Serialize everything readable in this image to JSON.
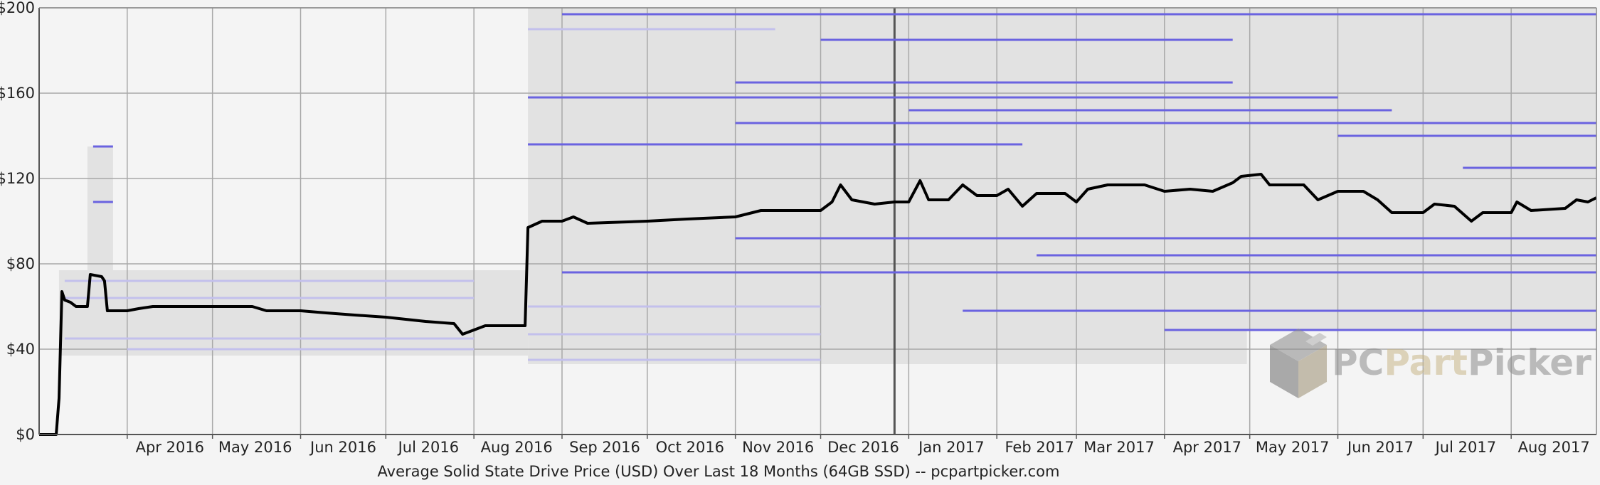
{
  "chart_data": {
    "type": "line",
    "title": "Average Solid State Drive Price (USD) Over Last 18 Months (64GB SSD) -- pcpartpicker.com",
    "xlabel": "",
    "ylabel": "",
    "x_range": [
      "2016-03-01",
      "2017-08-31"
    ],
    "ylim": [
      0,
      200
    ],
    "y_ticks": [
      0,
      40,
      80,
      120,
      160,
      200
    ],
    "y_tick_labels": [
      "$0",
      "$40",
      "$80",
      "$120",
      "$160",
      "$200"
    ],
    "x_ticks": [
      {
        "date": "2016-04-01",
        "label": "Apr 2016"
      },
      {
        "date": "2016-05-01",
        "label": "May 2016"
      },
      {
        "date": "2016-06-01",
        "label": "Jun 2016"
      },
      {
        "date": "2016-07-01",
        "label": "Jul 2016"
      },
      {
        "date": "2016-08-01",
        "label": "Aug 2016"
      },
      {
        "date": "2016-09-01",
        "label": "Sep 2016"
      },
      {
        "date": "2016-10-01",
        "label": "Oct 2016"
      },
      {
        "date": "2016-11-01",
        "label": "Nov 2016"
      },
      {
        "date": "2016-12-01",
        "label": "Dec 2016"
      },
      {
        "date": "2017-01-01",
        "label": "Jan 2017"
      },
      {
        "date": "2017-02-01",
        "label": "Feb 2017"
      },
      {
        "date": "2017-03-01",
        "label": "Mar 2017"
      },
      {
        "date": "2017-04-01",
        "label": "Apr 2017"
      },
      {
        "date": "2017-05-01",
        "label": "May 2017"
      },
      {
        "date": "2017-06-01",
        "label": "Jun 2017"
      },
      {
        "date": "2017-07-01",
        "label": "Jul 2017"
      },
      {
        "date": "2017-08-01",
        "label": "Aug 2017"
      }
    ],
    "grid": true,
    "series": [
      {
        "color": "#000000",
        "points": [
          [
            "2016-03-01",
            0
          ],
          [
            "2016-03-07",
            0
          ],
          [
            "2016-03-08",
            17
          ],
          [
            "2016-03-09",
            67
          ],
          [
            "2016-03-10",
            63
          ],
          [
            "2016-03-12",
            62
          ],
          [
            "2016-03-14",
            60
          ],
          [
            "2016-03-18",
            60
          ],
          [
            "2016-03-19",
            75
          ],
          [
            "2016-03-23",
            74
          ],
          [
            "2016-03-24",
            72
          ],
          [
            "2016-03-25",
            58
          ],
          [
            "2016-04-01",
            58
          ],
          [
            "2016-04-05",
            59
          ],
          [
            "2016-04-10",
            60
          ],
          [
            "2016-04-20",
            60
          ],
          [
            "2016-05-01",
            60
          ],
          [
            "2016-05-15",
            60
          ],
          [
            "2016-05-20",
            58
          ],
          [
            "2016-06-01",
            58
          ],
          [
            "2016-06-10",
            57
          ],
          [
            "2016-06-20",
            56
          ],
          [
            "2016-07-01",
            55
          ],
          [
            "2016-07-15",
            53
          ],
          [
            "2016-07-25",
            52
          ],
          [
            "2016-07-28",
            47
          ],
          [
            "2016-08-01",
            49
          ],
          [
            "2016-08-05",
            51
          ],
          [
            "2016-08-19",
            51
          ],
          [
            "2016-08-20",
            97
          ],
          [
            "2016-08-25",
            100
          ],
          [
            "2016-09-01",
            100
          ],
          [
            "2016-09-05",
            102
          ],
          [
            "2016-09-10",
            99
          ],
          [
            "2016-10-01",
            100
          ],
          [
            "2016-10-15",
            101
          ],
          [
            "2016-11-01",
            102
          ],
          [
            "2016-11-10",
            105
          ],
          [
            "2016-11-20",
            105
          ],
          [
            "2016-12-01",
            105
          ],
          [
            "2016-12-05",
            109
          ],
          [
            "2016-12-08",
            117
          ],
          [
            "2016-12-12",
            110
          ],
          [
            "2016-12-20",
            108
          ],
          [
            "2016-12-27",
            109
          ],
          [
            "2017-01-01",
            109
          ],
          [
            "2017-01-05",
            119
          ],
          [
            "2017-01-08",
            110
          ],
          [
            "2017-01-15",
            110
          ],
          [
            "2017-01-20",
            117
          ],
          [
            "2017-01-25",
            112
          ],
          [
            "2017-02-01",
            112
          ],
          [
            "2017-02-05",
            115
          ],
          [
            "2017-02-10",
            107
          ],
          [
            "2017-02-15",
            113
          ],
          [
            "2017-02-25",
            113
          ],
          [
            "2017-03-01",
            109
          ],
          [
            "2017-03-05",
            115
          ],
          [
            "2017-03-12",
            117
          ],
          [
            "2017-03-25",
            117
          ],
          [
            "2017-04-01",
            114
          ],
          [
            "2017-04-10",
            115
          ],
          [
            "2017-04-18",
            114
          ],
          [
            "2017-04-25",
            118
          ],
          [
            "2017-04-28",
            121
          ],
          [
            "2017-05-05",
            122
          ],
          [
            "2017-05-08",
            117
          ],
          [
            "2017-05-20",
            117
          ],
          [
            "2017-05-25",
            110
          ],
          [
            "2017-06-01",
            114
          ],
          [
            "2017-06-10",
            114
          ],
          [
            "2017-06-15",
            110
          ],
          [
            "2017-06-20",
            104
          ],
          [
            "2017-07-01",
            104
          ],
          [
            "2017-07-05",
            108
          ],
          [
            "2017-07-12",
            107
          ],
          [
            "2017-07-18",
            100
          ],
          [
            "2017-07-22",
            104
          ],
          [
            "2017-08-01",
            104
          ],
          [
            "2017-08-03",
            109
          ],
          [
            "2017-08-08",
            105
          ],
          [
            "2017-08-20",
            106
          ],
          [
            "2017-08-24",
            110
          ],
          [
            "2017-08-28",
            109
          ],
          [
            "2017-08-31",
            111
          ]
        ]
      }
    ],
    "individual_listings": [
      {
        "color": "#6a63e0",
        "segments": [
          [
            "2016-09-01",
            "2017-08-31",
            197
          ],
          [
            "2016-12-01",
            "2017-04-25",
            185
          ],
          [
            "2016-11-01",
            "2017-04-25",
            165
          ],
          [
            "2016-08-20",
            "2017-06-01",
            158
          ],
          [
            "2017-01-01",
            "2017-06-20",
            152
          ],
          [
            "2016-11-01",
            "2017-08-31",
            146
          ],
          [
            "2017-06-01",
            "2017-08-31",
            140
          ],
          [
            "2016-08-20",
            "2017-02-10",
            136
          ],
          [
            "2017-07-15",
            "2017-08-31",
            125
          ],
          [
            "2016-09-01",
            "2017-08-31",
            76
          ],
          [
            "2016-11-01",
            "2017-08-31",
            92
          ],
          [
            "2017-02-15",
            "2017-08-31",
            84
          ],
          [
            "2017-01-20",
            "2017-08-31",
            58
          ],
          [
            "2017-04-01",
            "2017-08-31",
            49
          ],
          [
            "2016-03-20",
            "2016-03-27",
            135
          ],
          [
            "2016-03-20",
            "2016-03-27",
            109
          ]
        ]
      },
      {
        "color": "#c3c0ec",
        "segments": [
          [
            "2016-03-10",
            "2016-08-01",
            72
          ],
          [
            "2016-03-10",
            "2016-08-01",
            64
          ],
          [
            "2016-03-10",
            "2016-08-01",
            45
          ],
          [
            "2016-04-01",
            "2016-08-01",
            40
          ],
          [
            "2016-08-20",
            "2016-12-01",
            60
          ],
          [
            "2016-08-20",
            "2016-12-01",
            47
          ],
          [
            "2016-08-20",
            "2016-12-01",
            35
          ],
          [
            "2016-08-20",
            "2016-11-15",
            190
          ]
        ]
      }
    ],
    "range_bands": [
      {
        "from": "2016-03-08",
        "to": "2016-08-20",
        "low": 37,
        "high": 77
      },
      {
        "from": "2016-03-18",
        "to": "2016-03-27",
        "low": 77,
        "high": 135
      },
      {
        "from": "2016-08-20",
        "to": "2017-04-30",
        "low": 33,
        "high": 200
      },
      {
        "from": "2017-04-30",
        "to": "2017-08-31",
        "low": 49,
        "high": 200
      }
    ]
  },
  "watermark": {
    "part1": "PC",
    "part2": "Part",
    "part3": "Picker"
  }
}
